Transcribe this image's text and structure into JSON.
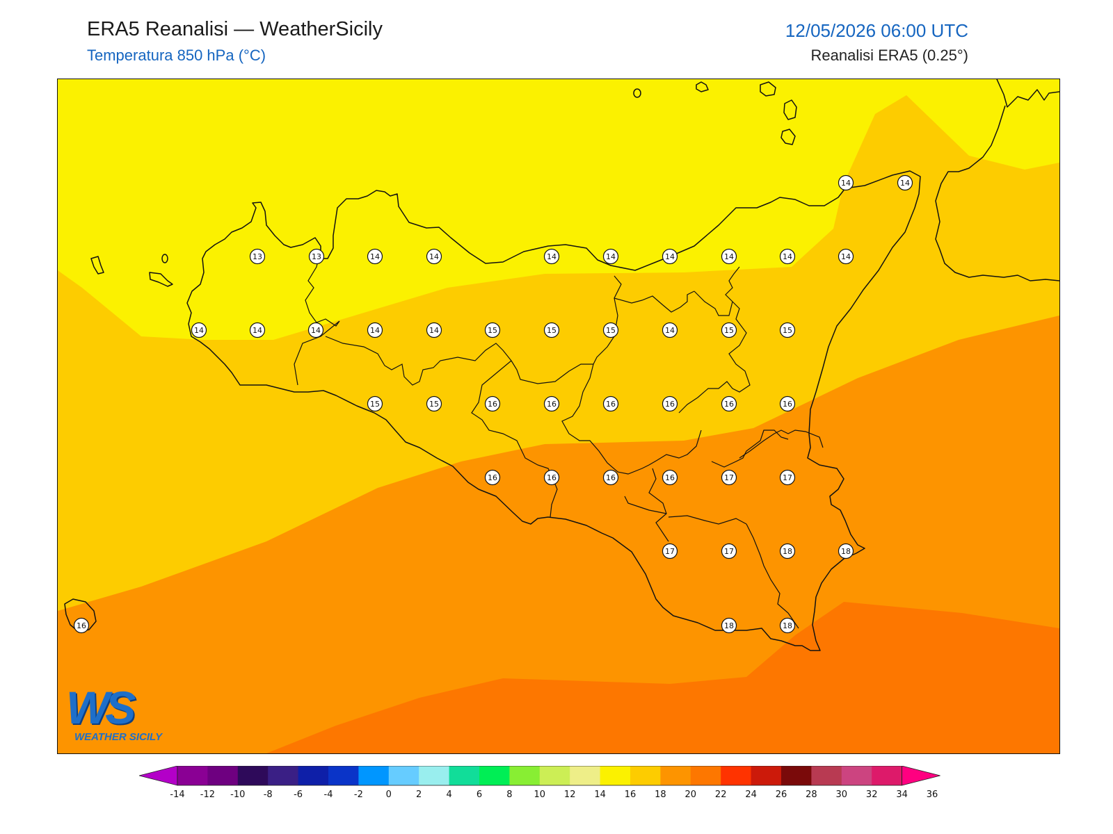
{
  "header": {
    "title": "ERA5 Reanalisi — WeatherSicily",
    "subtitle": "Temperatura 850 hPa (°C)",
    "datetime": "12/05/2026 06:00 UTC",
    "source": "Reanalisi ERA5 (0.25°)"
  },
  "logo": {
    "mark": "WS",
    "text": "WEATHER SICILY"
  },
  "map": {
    "variable": "Temperatura 850 hPa",
    "unit": "°C",
    "fill_colors": {
      "12-14": "#fbf100",
      "14-16": "#fdcc00",
      "16-18": "#fd9400",
      "18-20": "#fd7700"
    },
    "station_values": [
      {
        "row": 1,
        "values": [
          14,
          14
        ]
      },
      {
        "row": 2,
        "values": [
          13,
          13,
          14,
          14,
          14,
          14,
          14,
          14,
          14,
          14
        ]
      },
      {
        "row": 3,
        "values": [
          14,
          14,
          14,
          14,
          14,
          15,
          15,
          15,
          14,
          15,
          15
        ]
      },
      {
        "row": 4,
        "values": [
          15,
          15,
          16,
          16,
          16,
          16,
          16,
          16
        ]
      },
      {
        "row": 5,
        "values": [
          16,
          16,
          16,
          16,
          17,
          17
        ]
      },
      {
        "row": 6,
        "values": [
          17,
          17,
          18,
          18
        ]
      },
      {
        "row": 7,
        "values": [
          16,
          18,
          18
        ]
      }
    ]
  },
  "colorbar": {
    "ticks": [
      "-14",
      "-12",
      "-10",
      "-8",
      "-6",
      "-4",
      "-2",
      "0",
      "2",
      "4",
      "6",
      "8",
      "10",
      "12",
      "14",
      "16",
      "18",
      "20",
      "22",
      "24",
      "26",
      "28",
      "30",
      "32",
      "34",
      "36"
    ],
    "colors": [
      "#b300c8",
      "#8a0094",
      "#6e0080",
      "#2e0a5a",
      "#3a1f85",
      "#0e1fa8",
      "#0a34c8",
      "#0096ff",
      "#66ccff",
      "#99eeee",
      "#11dd99",
      "#00ee55",
      "#88ee33",
      "#ccee55",
      "#eeee88",
      "#fbf100",
      "#fdcc00",
      "#fd9400",
      "#fd7700",
      "#ff3300",
      "#cc1a0a",
      "#7a0a0a",
      "#b83a52",
      "#cc4480",
      "#dd1a6a",
      "#ff0080"
    ]
  }
}
